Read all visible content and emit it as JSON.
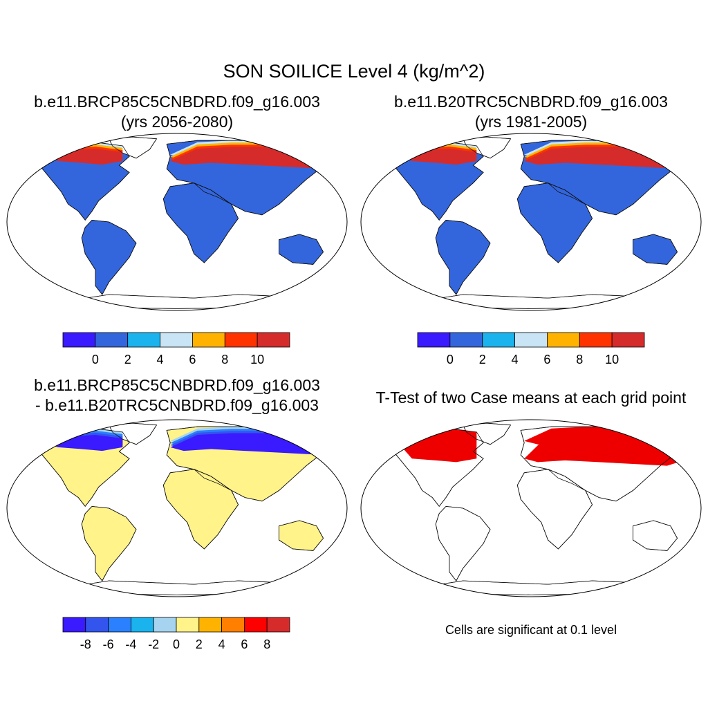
{
  "figure": {
    "title": "SON SOILICE Level 4 (kg/m^2)"
  },
  "panels": [
    {
      "id": "future",
      "title_line1": "b.e11.BRCP85C5CNBDRD.f09_g16.003",
      "title_line2": "(yrs 2056-2080)",
      "base_color": "#3366dd",
      "north_band": [
        "#c8e4f5",
        "#ffb300",
        "#ff3300",
        "#d62b2b"
      ]
    },
    {
      "id": "historical",
      "title_line1": "b.e11.B20TRC5CNBDRD.f09_g16.003",
      "title_line2": "(yrs 1981-2005)",
      "base_color": "#3366dd",
      "north_band": [
        "#c8e4f5",
        "#ffb300",
        "#ff3300",
        "#d62b2b"
      ]
    },
    {
      "id": "difference",
      "title_line1": "b.e11.BRCP85C5CNBDRD.f09_g16.003",
      "title_line2": "- b.e11.B20TRC5CNBDRD.f09_g16.003",
      "base_color": "#fff38a",
      "north_band": [
        "#a6d4f0",
        "#2a80ff",
        "#3355ee",
        "#3a1aff"
      ]
    },
    {
      "id": "ttest",
      "title_line1": "T-Test of two Case means at each grid point",
      "title_line2": "",
      "base_color": "#ffffff",
      "significant_color": "#ee0000"
    }
  ],
  "colorbars": {
    "absolute": {
      "colors": [
        "#3a1aff",
        "#3366dd",
        "#1ab3ee",
        "#c8e4f5",
        "#ffb300",
        "#ff3300",
        "#d62b2b"
      ],
      "tick_labels": [
        "0",
        "2",
        "4",
        "6",
        "8",
        "10"
      ]
    },
    "difference": {
      "colors": [
        "#3a1aff",
        "#3355ee",
        "#2a80ff",
        "#1ab3ee",
        "#a6d4f0",
        "#fff38a",
        "#ffb300",
        "#ff7f00",
        "#ff0000",
        "#d62b2b"
      ],
      "tick_labels": [
        "-8",
        "-6",
        "-4",
        "-2",
        "0",
        "2",
        "4",
        "6",
        "8"
      ]
    }
  },
  "significance_note": "Cells are significant at 0.1 level"
}
